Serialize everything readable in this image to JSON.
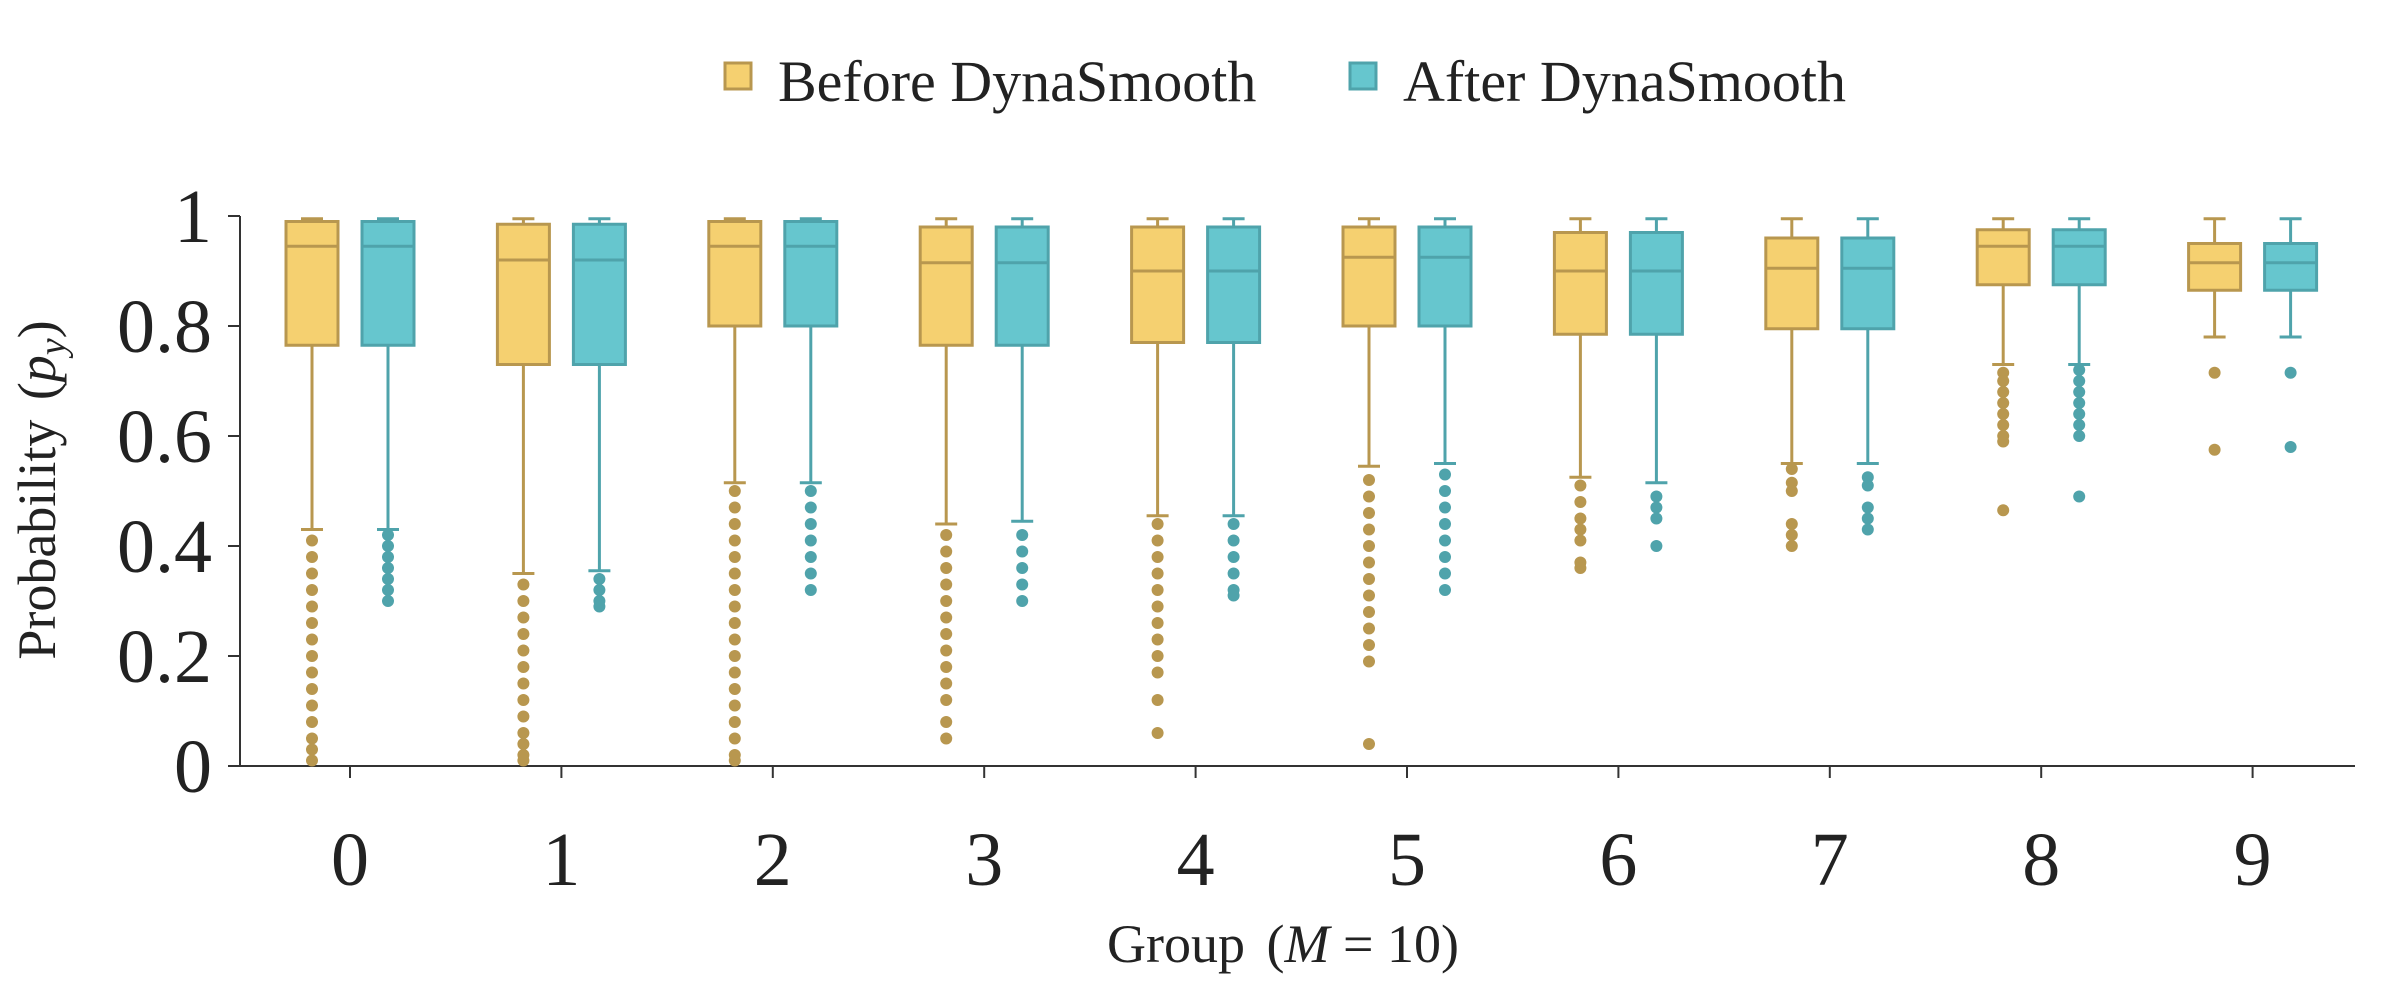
{
  "chart_data": {
    "type": "boxplot",
    "legend": {
      "placement": "top-center",
      "entries": [
        {
          "label": "Before DynaSmooth",
          "series": 0
        },
        {
          "label": "After DynaSmooth",
          "series": 1
        }
      ]
    },
    "xlabel_prefix": "Group",
    "xlabel_math": "M = 10",
    "xlabel_math_var": "M",
    "xlabel_math_rest": " = 10",
    "ylabel_prefix": "Probability",
    "ylabel_math_var": "p",
    "ylabel_math_sub": "y",
    "ylim": [
      0,
      1
    ],
    "yticks": [
      0,
      0.2,
      0.4,
      0.6,
      0.8,
      1
    ],
    "ytick_labels": [
      "0",
      "0.2",
      "0.4",
      "0.6",
      "0.8",
      "1"
    ],
    "categories": [
      "0",
      "1",
      "2",
      "3",
      "4",
      "5",
      "6",
      "7",
      "8",
      "9"
    ],
    "grid": false,
    "series": [
      {
        "name": "Before DynaSmooth",
        "color": "#F5D070",
        "edge_color": "#B8974F",
        "boxes": [
          {
            "whislo": 0.43,
            "q1": 0.765,
            "med": 0.945,
            "q3": 0.99,
            "whishi": 0.995,
            "fliers": [
              0.41,
              0.38,
              0.35,
              0.32,
              0.29,
              0.26,
              0.23,
              0.2,
              0.17,
              0.14,
              0.11,
              0.08,
              0.05,
              0.03,
              0.01
            ]
          },
          {
            "whislo": 0.35,
            "q1": 0.73,
            "med": 0.92,
            "q3": 0.985,
            "whishi": 0.995,
            "fliers": [
              0.33,
              0.3,
              0.27,
              0.24,
              0.21,
              0.18,
              0.15,
              0.12,
              0.09,
              0.06,
              0.04,
              0.02,
              0.01
            ]
          },
          {
            "whislo": 0.515,
            "q1": 0.8,
            "med": 0.945,
            "q3": 0.99,
            "whishi": 0.995,
            "fliers": [
              0.5,
              0.47,
              0.44,
              0.41,
              0.38,
              0.35,
              0.32,
              0.29,
              0.26,
              0.23,
              0.2,
              0.17,
              0.14,
              0.11,
              0.08,
              0.05,
              0.02,
              0.01
            ]
          },
          {
            "whislo": 0.44,
            "q1": 0.765,
            "med": 0.915,
            "q3": 0.98,
            "whishi": 0.995,
            "fliers": [
              0.42,
              0.39,
              0.36,
              0.33,
              0.3,
              0.27,
              0.24,
              0.21,
              0.18,
              0.15,
              0.12,
              0.08,
              0.05
            ]
          },
          {
            "whislo": 0.455,
            "q1": 0.77,
            "med": 0.9,
            "q3": 0.98,
            "whishi": 0.995,
            "fliers": [
              0.44,
              0.41,
              0.38,
              0.35,
              0.32,
              0.29,
              0.26,
              0.23,
              0.2,
              0.17,
              0.12,
              0.06
            ]
          },
          {
            "whislo": 0.545,
            "q1": 0.8,
            "med": 0.925,
            "q3": 0.98,
            "whishi": 0.995,
            "fliers": [
              0.52,
              0.49,
              0.46,
              0.43,
              0.4,
              0.37,
              0.34,
              0.31,
              0.28,
              0.25,
              0.22,
              0.19,
              0.04
            ]
          },
          {
            "whislo": 0.525,
            "q1": 0.785,
            "med": 0.9,
            "q3": 0.97,
            "whishi": 0.995,
            "fliers": [
              0.51,
              0.48,
              0.45,
              0.43,
              0.41,
              0.37,
              0.36
            ]
          },
          {
            "whislo": 0.55,
            "q1": 0.795,
            "med": 0.905,
            "q3": 0.96,
            "whishi": 0.995,
            "fliers": [
              0.54,
              0.515,
              0.5,
              0.44,
              0.42,
              0.4
            ]
          },
          {
            "whislo": 0.73,
            "q1": 0.875,
            "med": 0.945,
            "q3": 0.975,
            "whishi": 0.995,
            "fliers": [
              0.715,
              0.7,
              0.68,
              0.66,
              0.64,
              0.62,
              0.6,
              0.59,
              0.465
            ]
          },
          {
            "whislo": 0.78,
            "q1": 0.865,
            "med": 0.915,
            "q3": 0.95,
            "whishi": 0.995,
            "fliers": [
              0.715,
              0.575
            ]
          }
        ]
      },
      {
        "name": "After DynaSmooth",
        "color": "#66C6CE",
        "edge_color": "#4FA3AB",
        "boxes": [
          {
            "whislo": 0.43,
            "q1": 0.765,
            "med": 0.945,
            "q3": 0.99,
            "whishi": 0.995,
            "fliers": [
              0.42,
              0.4,
              0.38,
              0.36,
              0.34,
              0.32,
              0.3
            ]
          },
          {
            "whislo": 0.355,
            "q1": 0.73,
            "med": 0.92,
            "q3": 0.985,
            "whishi": 0.995,
            "fliers": [
              0.34,
              0.32,
              0.3,
              0.29
            ]
          },
          {
            "whislo": 0.515,
            "q1": 0.8,
            "med": 0.945,
            "q3": 0.99,
            "whishi": 0.995,
            "fliers": [
              0.5,
              0.47,
              0.44,
              0.41,
              0.38,
              0.35,
              0.32
            ]
          },
          {
            "whislo": 0.445,
            "q1": 0.765,
            "med": 0.915,
            "q3": 0.98,
            "whishi": 0.995,
            "fliers": [
              0.42,
              0.39,
              0.36,
              0.33,
              0.3
            ]
          },
          {
            "whislo": 0.455,
            "q1": 0.77,
            "med": 0.9,
            "q3": 0.98,
            "whishi": 0.995,
            "fliers": [
              0.44,
              0.41,
              0.38,
              0.35,
              0.32,
              0.31
            ]
          },
          {
            "whislo": 0.55,
            "q1": 0.8,
            "med": 0.925,
            "q3": 0.98,
            "whishi": 0.995,
            "fliers": [
              0.53,
              0.5,
              0.47,
              0.44,
              0.41,
              0.38,
              0.35,
              0.32
            ]
          },
          {
            "whislo": 0.515,
            "q1": 0.785,
            "med": 0.9,
            "q3": 0.97,
            "whishi": 0.995,
            "fliers": [
              0.49,
              0.47,
              0.45,
              0.4
            ]
          },
          {
            "whislo": 0.55,
            "q1": 0.795,
            "med": 0.905,
            "q3": 0.96,
            "whishi": 0.995,
            "fliers": [
              0.525,
              0.51,
              0.47,
              0.45,
              0.43
            ]
          },
          {
            "whislo": 0.73,
            "q1": 0.875,
            "med": 0.945,
            "q3": 0.975,
            "whishi": 0.995,
            "fliers": [
              0.72,
              0.7,
              0.68,
              0.66,
              0.64,
              0.62,
              0.6,
              0.49
            ]
          },
          {
            "whislo": 0.78,
            "q1": 0.865,
            "med": 0.915,
            "q3": 0.95,
            "whishi": 0.995,
            "fliers": [
              0.715,
              0.58
            ]
          }
        ]
      }
    ]
  }
}
